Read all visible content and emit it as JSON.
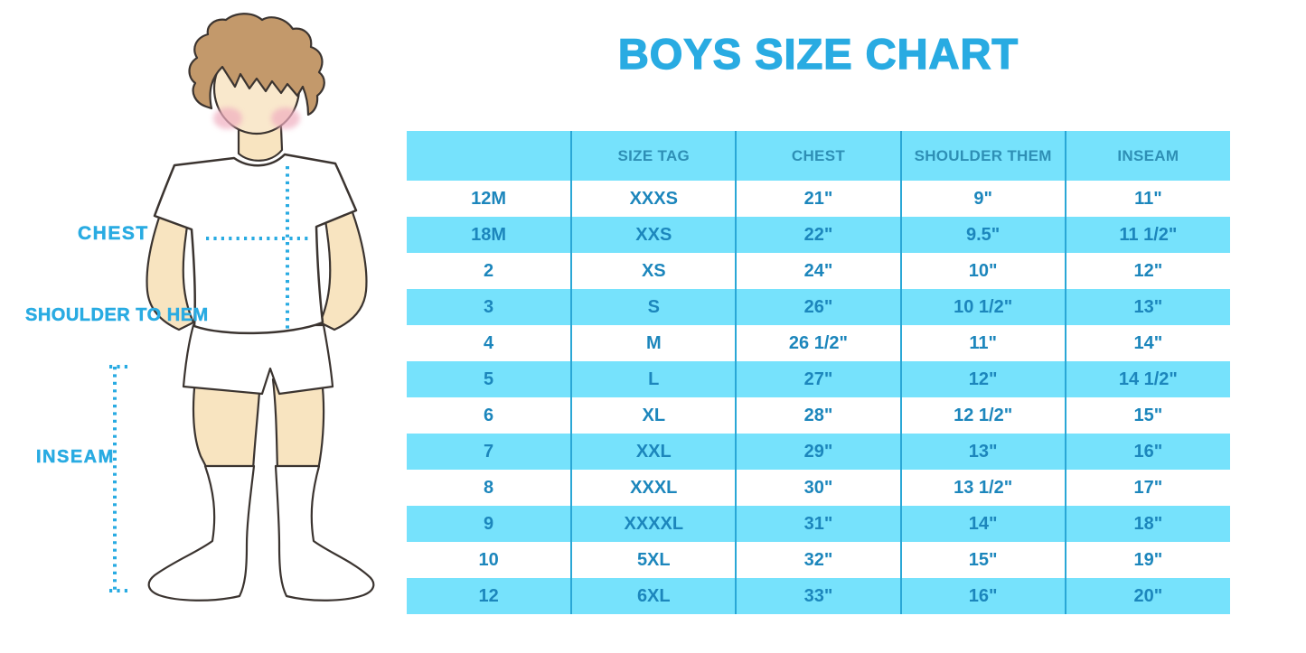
{
  "header": {
    "title": "BOYS SIZE CHART"
  },
  "figure": {
    "type": "boy-measurement-illustration",
    "labels": {
      "chest": "CHEST",
      "shoulder_to_hem": "SHOULDER TO HEM",
      "inseam": "INSEAM"
    }
  },
  "size_table": {
    "columns": [
      "",
      "SIZE TAG",
      "CHEST",
      "SHOULDER THEM",
      "INSEAM"
    ],
    "rows": [
      [
        "12M",
        "XXXS",
        "21\"",
        "9\"",
        "11\""
      ],
      [
        "18M",
        "XXS",
        "22\"",
        "9.5\"",
        "11 1/2\""
      ],
      [
        "2",
        "XS",
        "24\"",
        "10\"",
        "12\""
      ],
      [
        "3",
        "S",
        "26\"",
        "10 1/2\"",
        "13\""
      ],
      [
        "4",
        "M",
        "26 1/2\"",
        "11\"",
        "14\""
      ],
      [
        "5",
        "L",
        "27\"",
        "12\"",
        "14 1/2\""
      ],
      [
        "6",
        "XL",
        "28\"",
        "12 1/2\"",
        "15\""
      ],
      [
        "7",
        "XXL",
        "29\"",
        "13\"",
        "16\""
      ],
      [
        "8",
        "XXXL",
        "30\"",
        "13 1/2\"",
        "17\""
      ],
      [
        "9",
        "XXXXL",
        "31\"",
        "14\"",
        "18\""
      ],
      [
        "10",
        "5XL",
        "32\"",
        "15\"",
        "19\""
      ],
      [
        "12",
        "6XL",
        "33\"",
        "16\"",
        "20\""
      ]
    ]
  },
  "colors": {
    "accent_blue": "#29ABE2",
    "table_row_blue": "#76E2FC",
    "table_line_blue": "#2AA7D6",
    "cell_text_blue": "#1C86BC",
    "header_text_blue": "#2E8FB5",
    "skin": "#F8E4C0",
    "hair_brown": "#C3996B",
    "blush_pink": "#F0AEC0"
  }
}
